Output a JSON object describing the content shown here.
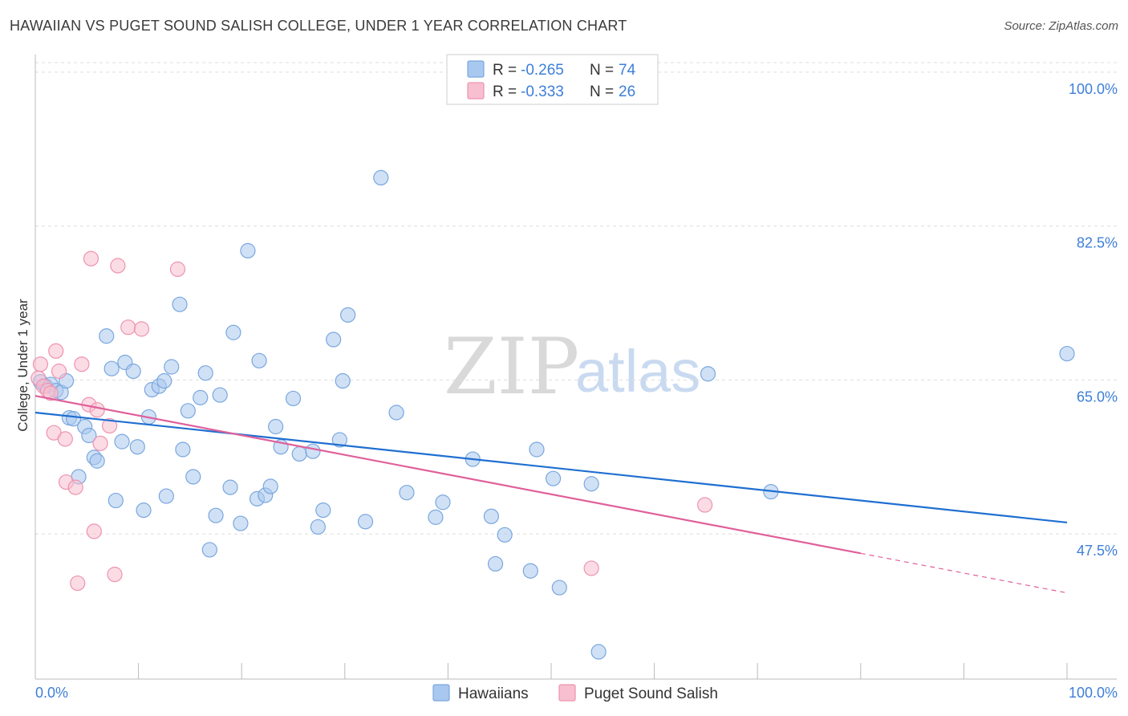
{
  "title": "HAWAIIAN VS PUGET SOUND SALISH COLLEGE, UNDER 1 YEAR CORRELATION CHART",
  "source": "Source: ZipAtlas.com",
  "watermark": {
    "zip": "ZIP",
    "atlas": "atlas"
  },
  "colors": {
    "hawaiians_fill": "#a9c8ef",
    "hawaiians_stroke": "#7aa7de",
    "hawaiians_line": "#1f6fd1",
    "salish_fill": "#f7bfd0",
    "salish_stroke": "#ee93b0",
    "salish_line": "#e0609a",
    "tick_label": "#3d7fd8",
    "grid": "#dddddd"
  },
  "legend": {
    "r_label": "R =",
    "n_label": "N =",
    "hawaiians": {
      "r": "-0.265",
      "n": "74"
    },
    "salish": {
      "r": "-0.333",
      "n": "26"
    }
  },
  "chart_data": {
    "type": "scatter",
    "title": "HAWAIIAN VS PUGET SOUND SALISH COLLEGE, UNDER 1 YEAR CORRELATION CHART",
    "xlabel": "",
    "ylabel": "College, Under 1 year",
    "xlim": [
      0,
      100
    ],
    "ylim": [
      31,
      102
    ],
    "x_tick_labels": [
      "0.0%",
      "100.0%"
    ],
    "y_ticks": [
      47.5,
      65.0,
      82.5,
      100.0
    ],
    "y_tick_labels": [
      "47.5%",
      "65.0%",
      "82.5%",
      "100.0%"
    ],
    "grid": true,
    "legend_position": "top-center",
    "series": [
      {
        "name": "Hawaiians",
        "r": -0.265,
        "n": 74,
        "trend": {
          "x": [
            0,
            100
          ],
          "y": [
            61.3,
            48.8
          ]
        },
        "points": [
          [
            0.5,
            64.8
          ],
          [
            1.0,
            64.3
          ],
          [
            1.5,
            64.5
          ],
          [
            2.0,
            63.8
          ],
          [
            2.5,
            63.6
          ],
          [
            3.0,
            64.9
          ],
          [
            3.3,
            60.7
          ],
          [
            3.7,
            60.6
          ],
          [
            4.2,
            54.0
          ],
          [
            4.8,
            59.7
          ],
          [
            5.2,
            58.7
          ],
          [
            5.7,
            56.2
          ],
          [
            6.0,
            55.8
          ],
          [
            6.9,
            70.0
          ],
          [
            7.4,
            66.3
          ],
          [
            7.8,
            51.3
          ],
          [
            8.4,
            58.0
          ],
          [
            8.7,
            67.0
          ],
          [
            9.5,
            66.0
          ],
          [
            9.9,
            57.4
          ],
          [
            10.5,
            50.2
          ],
          [
            11.0,
            60.8
          ],
          [
            11.3,
            63.9
          ],
          [
            12.0,
            64.3
          ],
          [
            12.5,
            64.9
          ],
          [
            12.7,
            51.8
          ],
          [
            13.2,
            66.5
          ],
          [
            14.0,
            73.6
          ],
          [
            14.3,
            57.1
          ],
          [
            14.8,
            61.5
          ],
          [
            15.3,
            54.0
          ],
          [
            16.0,
            63.0
          ],
          [
            16.5,
            65.8
          ],
          [
            16.9,
            45.7
          ],
          [
            17.5,
            49.6
          ],
          [
            17.9,
            63.3
          ],
          [
            18.9,
            52.8
          ],
          [
            19.2,
            70.4
          ],
          [
            19.9,
            48.7
          ],
          [
            20.6,
            79.7
          ],
          [
            21.5,
            51.5
          ],
          [
            21.7,
            67.2
          ],
          [
            22.3,
            51.9
          ],
          [
            22.8,
            52.9
          ],
          [
            23.3,
            59.7
          ],
          [
            23.8,
            57.4
          ],
          [
            25.0,
            62.9
          ],
          [
            25.6,
            56.6
          ],
          [
            26.9,
            56.9
          ],
          [
            27.4,
            48.3
          ],
          [
            27.9,
            50.2
          ],
          [
            28.9,
            69.6
          ],
          [
            29.5,
            58.2
          ],
          [
            29.8,
            64.9
          ],
          [
            30.3,
            72.4
          ],
          [
            32.0,
            48.9
          ],
          [
            33.5,
            88.0
          ],
          [
            35.0,
            61.3
          ],
          [
            36.0,
            52.2
          ],
          [
            38.8,
            49.4
          ],
          [
            39.5,
            51.1
          ],
          [
            42.4,
            56.0
          ],
          [
            44.2,
            49.5
          ],
          [
            44.6,
            44.1
          ],
          [
            45.5,
            47.4
          ],
          [
            48.0,
            43.3
          ],
          [
            48.6,
            57.1
          ],
          [
            50.2,
            53.8
          ],
          [
            50.8,
            41.4
          ],
          [
            53.9,
            53.2
          ],
          [
            54.6,
            34.1
          ],
          [
            65.2,
            65.7
          ],
          [
            71.3,
            52.3
          ],
          [
            100.0,
            68.0
          ]
        ]
      },
      {
        "name": "Puget Sound Salish",
        "r": -0.333,
        "n": 26,
        "trend": {
          "x": [
            0,
            80
          ],
          "y": [
            63.2,
            45.3
          ]
        },
        "trend_dashed": {
          "x": [
            80,
            100
          ],
          "y": [
            45.3,
            40.8
          ]
        },
        "points": [
          [
            0.3,
            65.2
          ],
          [
            0.5,
            66.8
          ],
          [
            0.8,
            64.3
          ],
          [
            1.2,
            63.8
          ],
          [
            1.5,
            63.5
          ],
          [
            1.8,
            59.0
          ],
          [
            2.0,
            68.3
          ],
          [
            2.3,
            66.0
          ],
          [
            2.9,
            58.3
          ],
          [
            3.0,
            53.4
          ],
          [
            3.9,
            52.8
          ],
          [
            4.5,
            66.8
          ],
          [
            5.2,
            62.2
          ],
          [
            5.4,
            78.8
          ],
          [
            5.7,
            47.8
          ],
          [
            6.0,
            61.6
          ],
          [
            6.3,
            57.8
          ],
          [
            7.2,
            59.8
          ],
          [
            7.7,
            42.9
          ],
          [
            8.0,
            78.0
          ],
          [
            9.0,
            71.0
          ],
          [
            10.3,
            70.8
          ],
          [
            13.8,
            77.6
          ],
          [
            4.1,
            41.9
          ],
          [
            53.9,
            43.6
          ],
          [
            64.9,
            50.8
          ]
        ]
      }
    ]
  },
  "bottom_legend": {
    "hawaiians": "Hawaiians",
    "salish": "Puget Sound Salish"
  }
}
